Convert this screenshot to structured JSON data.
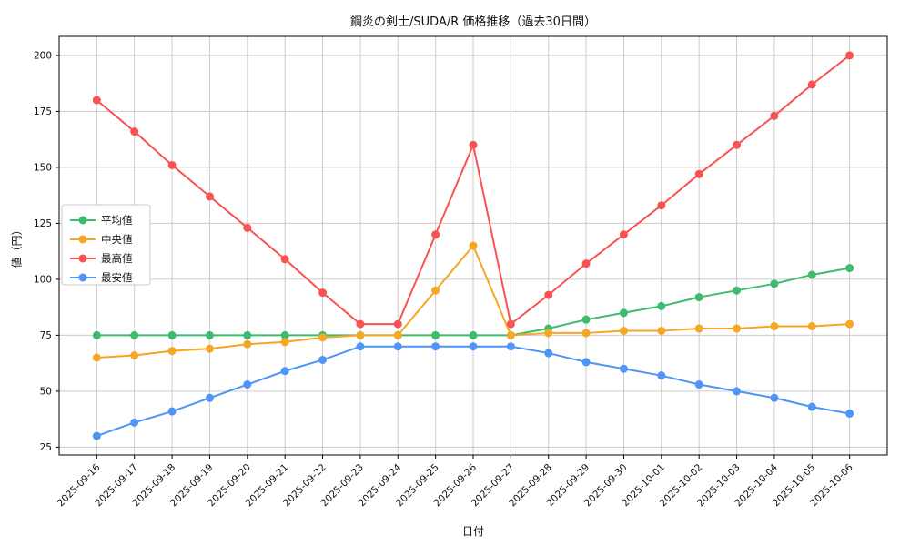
{
  "chart": {
    "title": "鋼炎の剣士/SUDA/R 価格推移（過去30日間）",
    "xlabel": "日付",
    "ylabel": "値（円）"
  },
  "chart_data": {
    "type": "line",
    "title": "鋼炎の剣士/SUDA/R 価格推移（過去30日間）",
    "xlabel": "日付",
    "ylabel": "値（円）",
    "categories": [
      "2025-09-16",
      "2025-09-17",
      "2025-09-18",
      "2025-09-19",
      "2025-09-20",
      "2025-09-21",
      "2025-09-22",
      "2025-09-23",
      "2025-09-24",
      "2025-09-25",
      "2025-09-26",
      "2025-09-27",
      "2025-09-28",
      "2025-09-29",
      "2025-09-30",
      "2025-10-01",
      "2025-10-02",
      "2025-10-03",
      "2025-10-04",
      "2025-10-05",
      "2025-10-06"
    ],
    "series": [
      {
        "name": "平均値",
        "color": "#3dbb6f",
        "values": [
          75,
          75,
          75,
          75,
          75,
          75,
          75,
          75,
          75,
          75,
          75,
          75,
          78,
          82,
          85,
          88,
          92,
          95,
          98,
          102,
          105
        ]
      },
      {
        "name": "中央値",
        "color": "#f5a623",
        "values": [
          65,
          66,
          68,
          69,
          71,
          72,
          74,
          75,
          75,
          95,
          115,
          75,
          76,
          76,
          77,
          77,
          78,
          78,
          79,
          79,
          80
        ]
      },
      {
        "name": "最高値",
        "color": "#fa5252",
        "values": [
          180,
          166,
          151,
          137,
          123,
          109,
          94,
          80,
          80,
          120,
          160,
          80,
          93,
          107,
          120,
          133,
          147,
          160,
          173,
          187,
          200
        ]
      },
      {
        "name": "最安値",
        "color": "#4f94f7",
        "values": [
          30,
          36,
          41,
          47,
          53,
          59,
          64,
          70,
          70,
          70,
          70,
          70,
          67,
          63,
          60,
          57,
          53,
          50,
          47,
          43,
          40
        ]
      }
    ],
    "yticks": [
      25,
      50,
      75,
      100,
      125,
      150,
      175,
      200
    ],
    "ylim": [
      21.5,
      208.5
    ],
    "xlim": [
      -1,
      21
    ],
    "grid": true,
    "grid_color": "#cccccc",
    "legend_position": "center-left"
  }
}
